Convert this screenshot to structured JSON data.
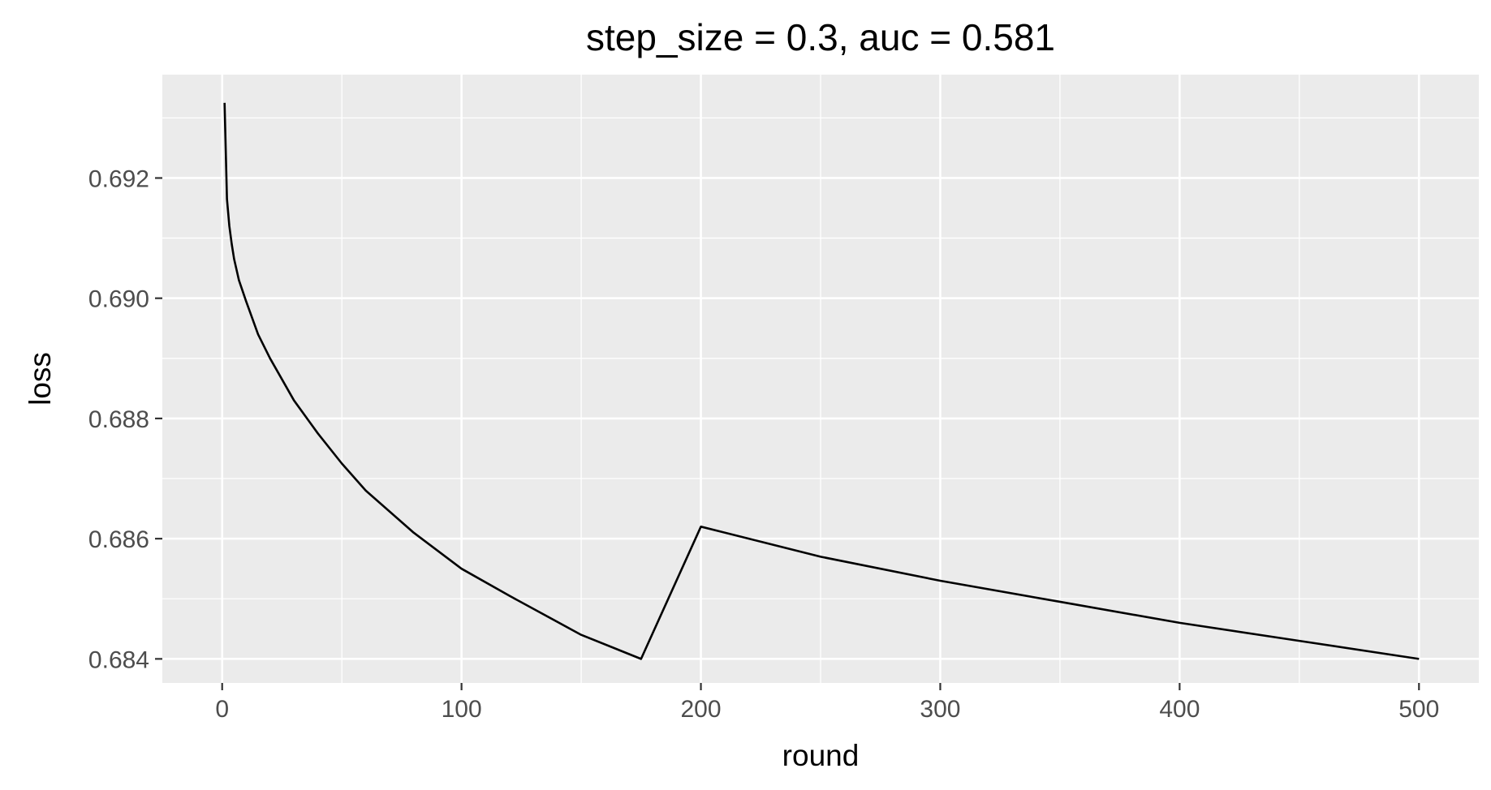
{
  "chart_data": {
    "type": "line",
    "title": "step_size = 0.3, auc = 0.581",
    "xlabel": "round",
    "ylabel": "loss",
    "xlim": [
      -25,
      525
    ],
    "ylim": [
      0.6836,
      0.69372
    ],
    "x_ticks": [
      0,
      100,
      200,
      300,
      400,
      500
    ],
    "x_tick_labels": [
      "0",
      "100",
      "200",
      "300",
      "400",
      "500"
    ],
    "y_ticks": [
      0.684,
      0.686,
      0.688,
      0.69,
      0.692
    ],
    "y_tick_labels": [
      "0.684",
      "0.686",
      "0.688",
      "0.690",
      "0.692"
    ],
    "x_minor": [
      50,
      150,
      250,
      350,
      450
    ],
    "y_minor": [
      0.685,
      0.687,
      0.689,
      0.691,
      0.693
    ],
    "grid": true,
    "legend": "none",
    "colors": {
      "panel": "#ebebeb",
      "grid": "#ffffff",
      "line": "#000000",
      "tick_text": "#4d4d4d",
      "tick_mark": "#333333"
    },
    "series": [
      {
        "x": [
          1,
          2,
          3,
          4,
          5,
          7,
          10,
          15,
          20,
          30,
          40,
          50,
          60,
          80,
          100,
          120,
          150,
          175,
          200,
          250,
          300,
          350,
          400,
          450,
          500
        ],
        "values": [
          0.69325,
          0.69165,
          0.6912,
          0.6909,
          0.69065,
          0.6903,
          0.68995,
          0.6894,
          0.689,
          0.6883,
          0.68775,
          0.68725,
          0.6868,
          0.6861,
          0.6855,
          0.68505,
          0.6844,
          0.684,
          0.6862,
          0.6857,
          0.6853,
          0.68495,
          0.6846,
          0.6843,
          0.684
        ]
      }
    ]
  }
}
